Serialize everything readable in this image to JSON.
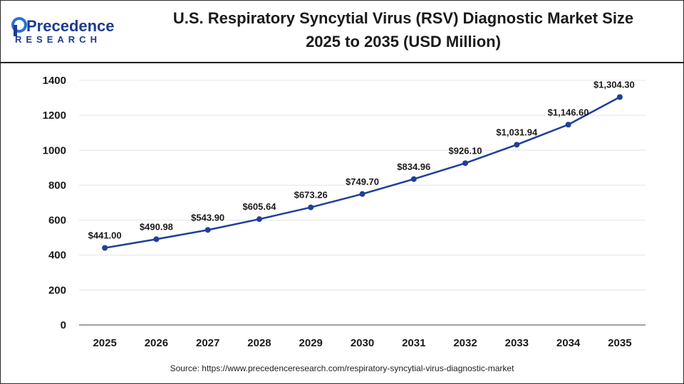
{
  "logo": {
    "word_top": "Precedence",
    "word_bottom": "RESEARCH",
    "brand_color": "#1b3c8f",
    "accent_color": "#2a6fd6"
  },
  "title": {
    "line1": "U.S. Respiratory Syncytial Virus (RSV) Diagnostic Market Size",
    "line2": "2025 to 2035 (USD Million)"
  },
  "source": {
    "prefix": "Source: ",
    "url": "https://www.precedenceresearch.com/respiratory-syncytial-virus-diagnostic-market"
  },
  "chart_data": {
    "type": "line",
    "title": "U.S. Respiratory Syncytial Virus (RSV) Diagnostic Market Size 2025 to 2035 (USD Million)",
    "categories": [
      "2025",
      "2026",
      "2027",
      "2028",
      "2029",
      "2030",
      "2031",
      "2032",
      "2033",
      "2034",
      "2035"
    ],
    "series": [
      {
        "values": [
          441.0,
          490.98,
          543.9,
          605.64,
          673.26,
          749.7,
          834.96,
          926.1,
          1031.94,
          1146.6,
          1304.3
        ],
        "labels": [
          "$441.00",
          "$490.98",
          "$543.90",
          "$605.64",
          "$673.26",
          "$749.70",
          "$834.96",
          "$926.10",
          "$1,031.94",
          "$1,146.60",
          "$1,304.30"
        ],
        "color": "#1f3f99"
      }
    ],
    "yticks": [
      "0",
      "200",
      "400",
      "600",
      "800",
      "1000",
      "1200",
      "1400"
    ],
    "ylim": [
      0,
      1400
    ],
    "grid": true,
    "xlabel": "",
    "ylabel": ""
  }
}
